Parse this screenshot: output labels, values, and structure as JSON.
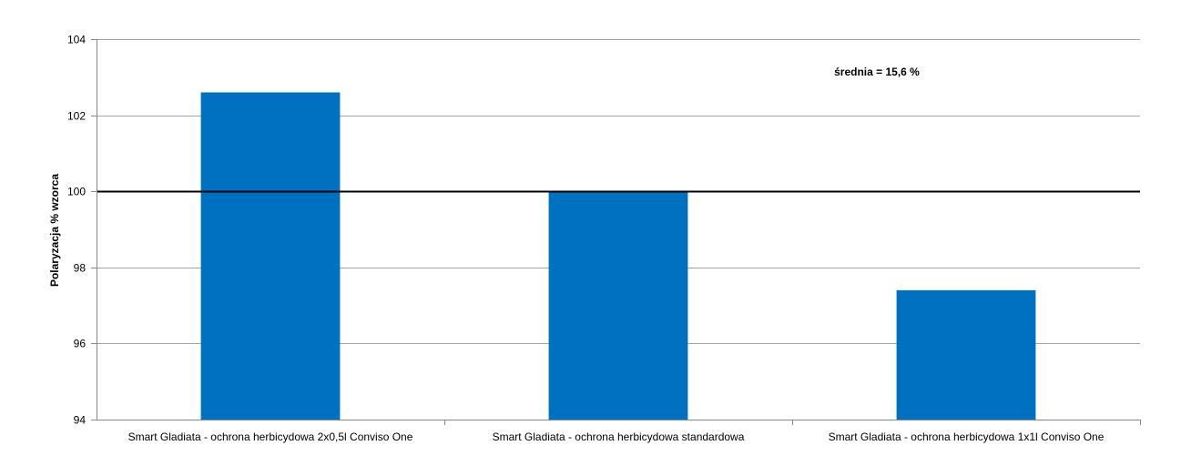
{
  "chart_data": {
    "type": "bar",
    "categories": [
      "Smart Gladiata - ochrona herbicydowa 2x0,5l Conviso One",
      "Smart Gladiata - ochrona herbicydowa standardowa",
      "Smart Gladiata - ochrona herbicydowa 1x1l Conviso One"
    ],
    "values": [
      102.6,
      100.0,
      97.4
    ],
    "title": "",
    "xlabel": "",
    "ylabel": "Polaryzacja % wzorca",
    "ylim": [
      94,
      104
    ],
    "yticks": [
      94,
      96,
      98,
      100,
      102,
      104
    ],
    "reference_line": 100,
    "annotation": "średnia = 15,6 %",
    "grid": true,
    "bar_color": "#0070C0",
    "grid_color": "#a6a6a6",
    "reference_line_color": "#000000"
  }
}
